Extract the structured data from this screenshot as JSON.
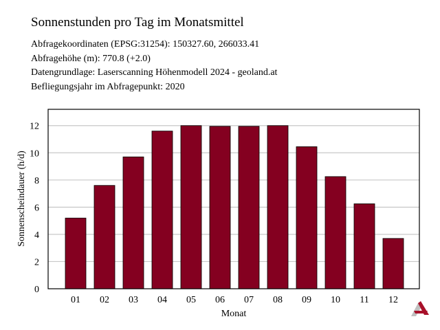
{
  "header": {
    "title": "Sonnenstunden pro Tag im Monatsmittel",
    "info": [
      "Abfragekoordinaten (EPSG:31254): 150327.60, 266033.41",
      "Abfragehöhe (m): 770.8 (+2.0)",
      "Datengrundlage: Laserscanning Höhenmodell 2024 - geoland.at",
      "Befliegungsjahr im Abfragepunkt: 2020"
    ]
  },
  "logo": {
    "icon": "red-grey-chevron-logo"
  },
  "chart_data": {
    "type": "bar",
    "title": "Sonnenstunden pro Tag im Monatsmittel",
    "xlabel": "Monat",
    "ylabel": "Sonnenscheindauer (h/d)",
    "categories": [
      "01",
      "02",
      "03",
      "04",
      "05",
      "06",
      "07",
      "08",
      "09",
      "10",
      "11",
      "12"
    ],
    "values": [
      5.2,
      7.6,
      9.7,
      11.6,
      12.0,
      11.95,
      11.95,
      12.0,
      10.45,
      8.25,
      6.25,
      3.7
    ],
    "ylim": [
      0,
      13.2
    ],
    "yticks": [
      0,
      2,
      4,
      6,
      8,
      10,
      12
    ],
    "grid": true,
    "legend": "none",
    "bar_color": "#840020",
    "grid_color": "#c8c8c8"
  }
}
